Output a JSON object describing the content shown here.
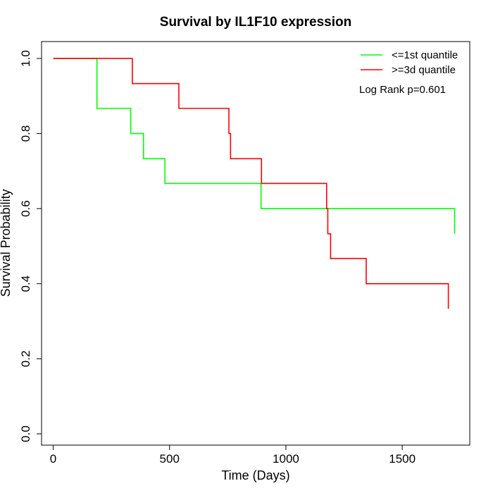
{
  "chart_data": {
    "type": "line",
    "title": "Survival by IL1F10 expression",
    "xlabel": "Time (Days)",
    "ylabel": "Survival Probability",
    "xlim": [
      -50,
      1790
    ],
    "ylim": [
      -0.03,
      1.045
    ],
    "xticks": [
      0,
      500,
      1000,
      1500
    ],
    "yticks": [
      0.0,
      0.2,
      0.4,
      0.6,
      0.8,
      1.0
    ],
    "xtick_labels": [
      "0",
      "500",
      "1000",
      "1500"
    ],
    "ytick_labels": [
      "0.0",
      "0.2",
      "0.4",
      "0.6",
      "0.8",
      "1.0"
    ],
    "grid": false,
    "legend_position": "top-right",
    "annotation": "Log Rank p=0.601",
    "series": [
      {
        "name": "<=1st quantile",
        "color": "#00ff00",
        "step": true,
        "x": [
          0,
          170,
          188,
          328,
          333,
          388,
          480,
          893,
          1725
        ],
        "y": [
          1.0,
          1.0,
          0.867,
          0.867,
          0.8,
          0.733,
          0.667,
          0.6,
          0.533
        ]
      },
      {
        "name": ">=3d quantile",
        "color": "#ff0000",
        "step": true,
        "x": [
          0,
          48,
          340,
          540,
          755,
          762,
          895,
          1175,
          1180,
          1192,
          1345,
          1698
        ],
        "y": [
          1.0,
          1.0,
          0.933,
          0.867,
          0.8,
          0.733,
          0.667,
          0.6,
          0.533,
          0.467,
          0.4,
          0.333
        ]
      }
    ]
  }
}
